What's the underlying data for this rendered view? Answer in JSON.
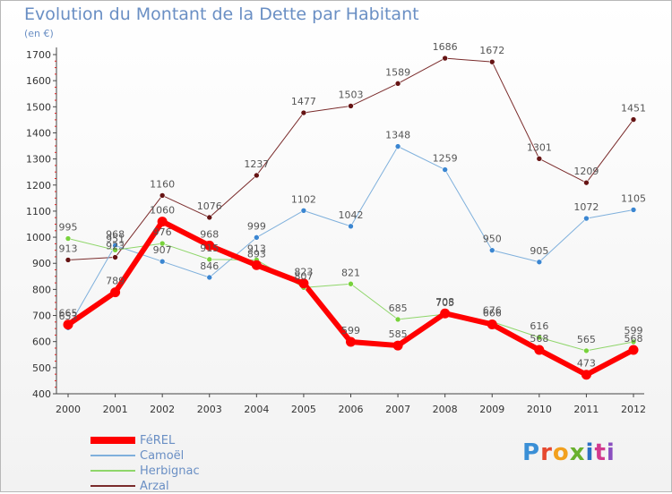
{
  "header": {
    "title": "Evolution du Montant de la Dette par Habitant",
    "unit": "(en €)"
  },
  "brand": {
    "text": "Proxiti",
    "letter_colors": [
      "#3a8fd6",
      "#e6482e",
      "#f2a01e",
      "#6ab12e",
      "#2b6fc4",
      "#d2398e",
      "#8a4fc0"
    ]
  },
  "chart_data": {
    "type": "line",
    "title": "Evolution du Montant de la Dette par Habitant",
    "subtitle": "(en €)",
    "xlabel": "",
    "ylabel": "",
    "x": [
      "2000",
      "2001",
      "2002",
      "2003",
      "2004",
      "2005",
      "2006",
      "2007",
      "2008",
      "2009",
      "2010",
      "2011",
      "2012"
    ],
    "ylim": [
      400,
      1700
    ],
    "yticks": [
      400,
      500,
      600,
      700,
      800,
      900,
      1000,
      1100,
      1200,
      1300,
      1400,
      1500,
      1600,
      1700
    ],
    "grid": false,
    "legend_position": "bottom-left",
    "series": [
      {
        "name": "FéREL",
        "color": "#ff0000",
        "marker_color": "#ff0000",
        "width": 6,
        "values": [
          665,
          789,
          1060,
          968,
          893,
          823,
          599,
          585,
          708,
          666,
          568,
          473,
          568
        ]
      },
      {
        "name": "Camoël",
        "color": "#7fb0dc",
        "marker_color": "#3b86d1",
        "width": 1,
        "values": [
          653,
          968,
          907,
          846,
          999,
          1102,
          1042,
          1348,
          1259,
          950,
          905,
          1072,
          1105
        ]
      },
      {
        "name": "Herbignac",
        "color": "#8fd66a",
        "marker_color": "#78d23c",
        "width": 1,
        "values": [
          995,
          951,
          976,
          915,
          913,
          807,
          821,
          685,
          705,
          676,
          616,
          565,
          599
        ]
      },
      {
        "name": "Arzal",
        "color": "#7a2b2b",
        "marker_color": "#661414",
        "width": 1,
        "values": [
          913,
          923,
          1160,
          1076,
          1237,
          1477,
          1503,
          1589,
          1686,
          1672,
          1301,
          1209,
          1451
        ]
      }
    ]
  }
}
